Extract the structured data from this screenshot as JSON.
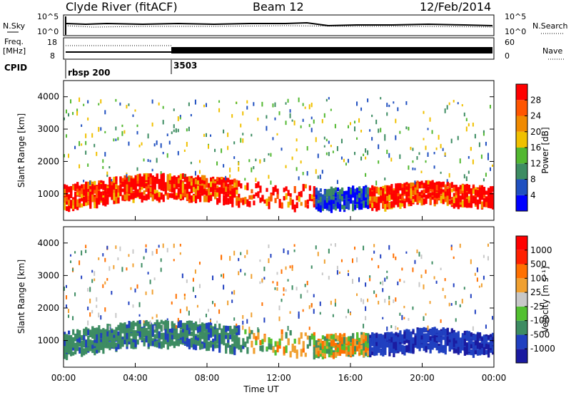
{
  "header": {
    "station": "Clyde River (fitACF)",
    "beam": "Beam 12",
    "date": "12/Feb/2014"
  },
  "panels": {
    "nsky_label": "N.Sky",
    "nsky_ticks": [
      "10^5",
      "10^0"
    ],
    "nsearch_label": "N.Search",
    "nsearch_ticks": [
      "10^5",
      "10^0"
    ],
    "freq_label": "Freq.",
    "freq_unit": "[MHz]",
    "freq_ticks": [
      "18",
      "8"
    ],
    "nave_label": "Nave",
    "nave_ticks": [
      "60",
      "0"
    ],
    "cpid_label": "CPID",
    "cpid_1": "rbsp 200",
    "cpid_2": "3503"
  },
  "chart_data": [
    {
      "type": "heatmap",
      "name": "power",
      "ylabel": "Slant Range [km]",
      "yticks": [
        "4000",
        "3000",
        "2000",
        "1000"
      ],
      "ylim": [
        180,
        4500
      ],
      "colorbar_label": "Power [dB]",
      "colorbar_ticks": [
        "28",
        "24",
        "20",
        "16",
        "12",
        "8",
        "4"
      ],
      "colorbar_colors": [
        "#0000ff",
        "#2050c0",
        "#3d8c62",
        "#52b830",
        "#f0c000",
        "#f08a00",
        "#ff5500",
        "#ff0000"
      ]
    },
    {
      "type": "heatmap",
      "name": "velocity",
      "ylabel": "Slant Range [km]",
      "yticks": [
        "4000",
        "3000",
        "2000",
        "1000"
      ],
      "ylim": [
        180,
        4500
      ],
      "xlabel": "Time UT",
      "xticks": [
        "00:00",
        "04:00",
        "08:00",
        "12:00",
        "16:00",
        "20:00",
        "00:00"
      ],
      "colorbar_label": "Velocity [m s⁻¹]",
      "colorbar_ticks": [
        "1000",
        "500",
        "100",
        "25",
        "-25",
        "-100",
        "-500",
        "-1000"
      ],
      "colorbar_colors": [
        "#1a1aa0",
        "#2040c0",
        "#3d8c62",
        "#52c030",
        "#c8c8c8",
        "#f0a030",
        "#ff7000",
        "#ff2000",
        "#ff0000"
      ]
    }
  ]
}
